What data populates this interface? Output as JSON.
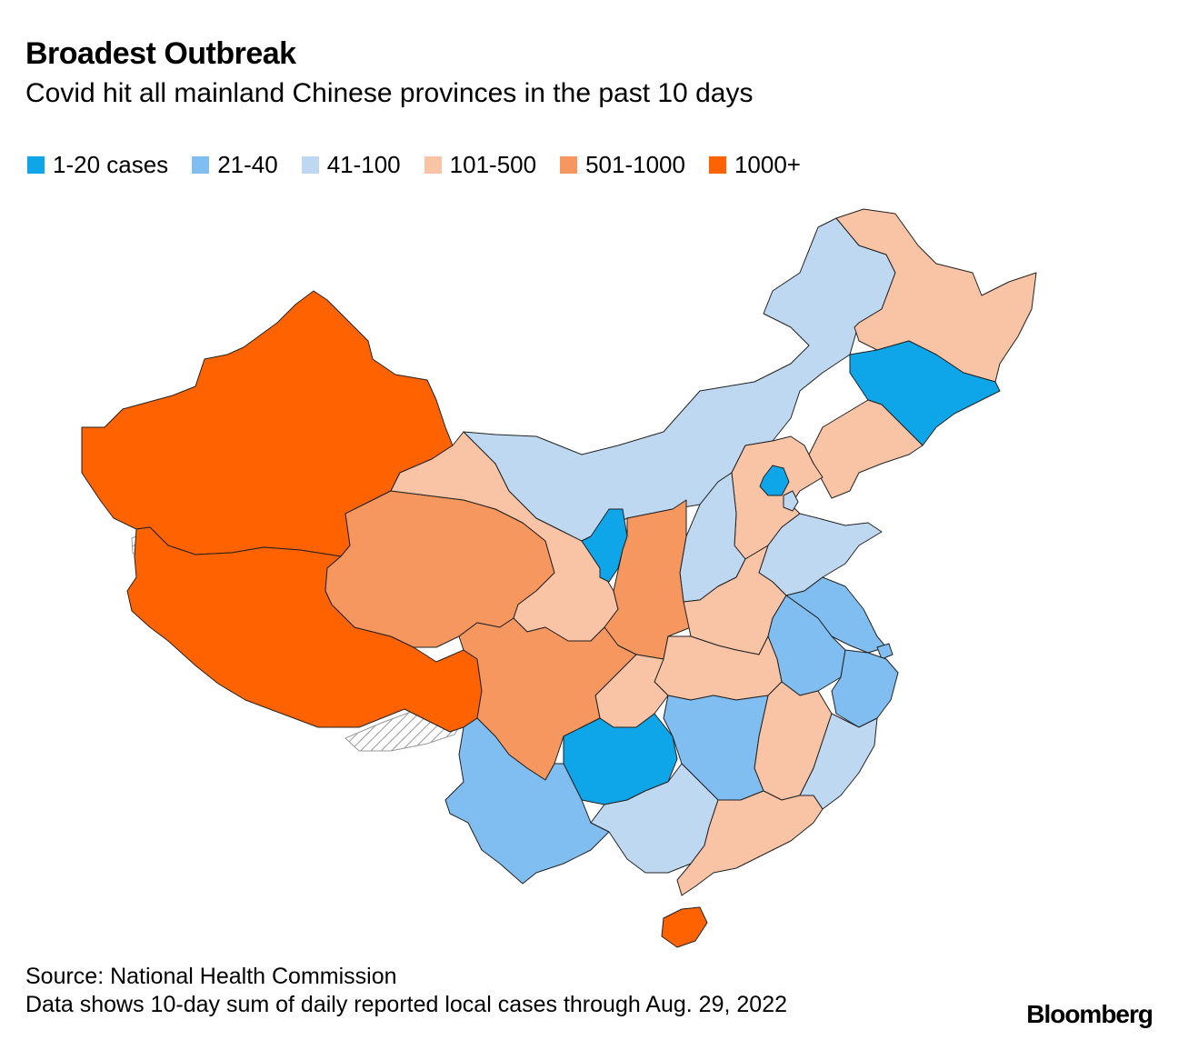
{
  "header": {
    "title": "Broadest Outbreak",
    "subtitle": "Covid hit all mainland Chinese provinces in the past 10 days"
  },
  "legend": [
    {
      "label": "1-20 cases",
      "color": "#0ea5e9"
    },
    {
      "label": "21-40",
      "color": "#80bdf0"
    },
    {
      "label": "41-100",
      "color": "#bfd8f1"
    },
    {
      "label": "101-500",
      "color": "#f9c3a5"
    },
    {
      "label": "501-1000",
      "color": "#f6975f"
    },
    {
      "label": "1000+",
      "color": "#ff6200"
    }
  ],
  "map": {
    "regions": [
      {
        "name": "Xinjiang",
        "bucket": "1000+"
      },
      {
        "name": "Tibet",
        "bucket": "1000+"
      },
      {
        "name": "Hainan",
        "bucket": "1000+"
      },
      {
        "name": "Qinghai",
        "bucket": "501-1000"
      },
      {
        "name": "Sichuan",
        "bucket": "501-1000"
      },
      {
        "name": "Shaanxi",
        "bucket": "501-1000"
      },
      {
        "name": "Gansu",
        "bucket": "101-500"
      },
      {
        "name": "Heilongjiang",
        "bucket": "101-500"
      },
      {
        "name": "Liaoning",
        "bucket": "101-500"
      },
      {
        "name": "Hebei",
        "bucket": "101-500"
      },
      {
        "name": "Henan",
        "bucket": "101-500"
      },
      {
        "name": "Hubei",
        "bucket": "101-500"
      },
      {
        "name": "Chongqing",
        "bucket": "101-500"
      },
      {
        "name": "Jiangxi",
        "bucket": "101-500"
      },
      {
        "name": "Guangdong",
        "bucket": "101-500"
      },
      {
        "name": "Inner Mongolia",
        "bucket": "41-100"
      },
      {
        "name": "Shanxi",
        "bucket": "41-100"
      },
      {
        "name": "Shandong",
        "bucket": "41-100"
      },
      {
        "name": "Fujian",
        "bucket": "41-100"
      },
      {
        "name": "Guangxi",
        "bucket": "41-100"
      },
      {
        "name": "Tianjin",
        "bucket": "41-100"
      },
      {
        "name": "Yunnan",
        "bucket": "21-40"
      },
      {
        "name": "Hunan",
        "bucket": "21-40"
      },
      {
        "name": "Anhui",
        "bucket": "21-40"
      },
      {
        "name": "Jiangsu",
        "bucket": "21-40"
      },
      {
        "name": "Zhejiang",
        "bucket": "21-40"
      },
      {
        "name": "Shanghai",
        "bucket": "21-40"
      },
      {
        "name": "Jilin",
        "bucket": "1-20 cases"
      },
      {
        "name": "Guizhou",
        "bucket": "1-20 cases"
      },
      {
        "name": "Ningxia",
        "bucket": "1-20 cases"
      },
      {
        "name": "Beijing",
        "bucket": "1-20 cases"
      }
    ],
    "disputed_fill": "hatched"
  },
  "footer": {
    "source": "Source: National Health Commission",
    "note": "Data shows 10-day sum of daily reported local cases through Aug. 29, 2022",
    "brand": "Bloomberg"
  }
}
